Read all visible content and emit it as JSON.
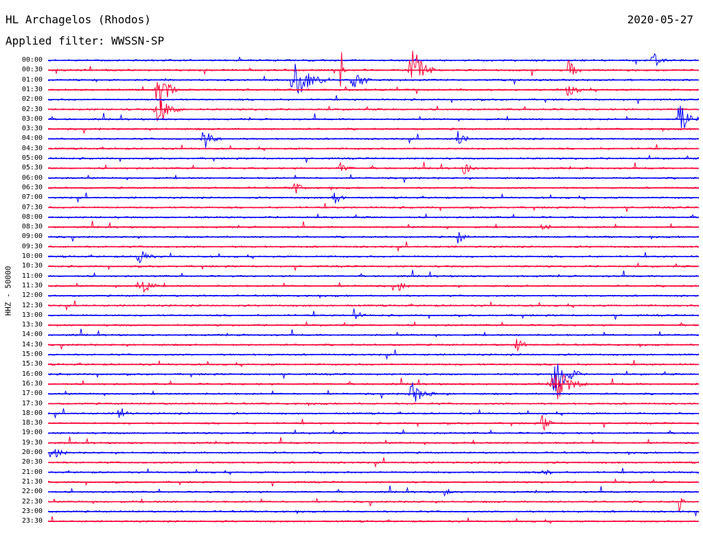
{
  "header": {
    "station": "HL Archagelos (Rhodos)",
    "date": "2020-05-27",
    "filter": "Applied filter: WWSSN-SP"
  },
  "chart_data": {
    "type": "line",
    "title": "HL Archagelos (Rhodos)",
    "subtitle": "Applied filter: WWSSN-SP",
    "ylabel": "HHZ - 50000",
    "colors": [
      "#0000ff",
      "#ff0033"
    ],
    "rows": [
      "00:00",
      "00:30",
      "01:00",
      "01:30",
      "02:00",
      "02:30",
      "03:00",
      "03:30",
      "04:00",
      "04:30",
      "05:00",
      "05:30",
      "06:00",
      "06:30",
      "07:00",
      "07:30",
      "08:00",
      "08:30",
      "09:00",
      "09:30",
      "10:00",
      "10:30",
      "11:00",
      "11:30",
      "12:00",
      "12:30",
      "13:00",
      "13:30",
      "14:00",
      "14:30",
      "15:00",
      "15:30",
      "16:00",
      "16:30",
      "17:00",
      "17:30",
      "18:00",
      "18:30",
      "19:00",
      "19:30",
      "20:00",
      "20:30",
      "21:00",
      "21:30",
      "22:00",
      "22:30",
      "23:00",
      "23:30"
    ],
    "events": [
      {
        "row": 0,
        "t": 0.93,
        "amp": 1.6,
        "dur": 0.02
      },
      {
        "row": 1,
        "t": 0.45,
        "amp": 5,
        "dur": 0.008
      },
      {
        "row": 1,
        "t": 0.56,
        "amp": 4.5,
        "dur": 0.035
      },
      {
        "row": 1,
        "t": 0.8,
        "amp": 2.2,
        "dur": 0.02
      },
      {
        "row": 2,
        "t": 0.38,
        "amp": 3,
        "dur": 0.06
      },
      {
        "row": 2,
        "t": 0.47,
        "amp": 2,
        "dur": 0.03
      },
      {
        "row": 3,
        "t": 0.17,
        "amp": 4.5,
        "dur": 0.03
      },
      {
        "row": 3,
        "t": 0.8,
        "amp": 1.5,
        "dur": 0.025
      },
      {
        "row": 5,
        "t": 0.17,
        "amp": 2.5,
        "dur": 0.04
      },
      {
        "row": 6,
        "t": 0.97,
        "amp": 3.5,
        "dur": 0.03
      },
      {
        "row": 8,
        "t": 0.24,
        "amp": 1.8,
        "dur": 0.03
      },
      {
        "row": 8,
        "t": 0.63,
        "amp": 1.5,
        "dur": 0.02
      },
      {
        "row": 11,
        "t": 0.45,
        "amp": 1.2,
        "dur": 0.02
      },
      {
        "row": 11,
        "t": 0.64,
        "amp": 1.3,
        "dur": 0.02
      },
      {
        "row": 13,
        "t": 0.38,
        "amp": 1.2,
        "dur": 0.02
      },
      {
        "row": 14,
        "t": 0.44,
        "amp": 1.3,
        "dur": 0.02
      },
      {
        "row": 17,
        "t": 0.76,
        "amp": 1.3,
        "dur": 0.015
      },
      {
        "row": 18,
        "t": 0.63,
        "amp": 1.2,
        "dur": 0.02
      },
      {
        "row": 20,
        "t": 0.14,
        "amp": 1.8,
        "dur": 0.025
      },
      {
        "row": 23,
        "t": 0.14,
        "amp": 2.2,
        "dur": 0.03
      },
      {
        "row": 23,
        "t": 0.54,
        "amp": 1.2,
        "dur": 0.015
      },
      {
        "row": 26,
        "t": 0.47,
        "amp": 1.2,
        "dur": 0.02
      },
      {
        "row": 29,
        "t": 0.72,
        "amp": 1.3,
        "dur": 0.02
      },
      {
        "row": 32,
        "t": 0.78,
        "amp": 4.5,
        "dur": 0.04
      },
      {
        "row": 33,
        "t": 0.78,
        "amp": 3,
        "dur": 0.05
      },
      {
        "row": 34,
        "t": 0.56,
        "amp": 1.8,
        "dur": 0.04
      },
      {
        "row": 36,
        "t": 0.11,
        "amp": 1.3,
        "dur": 0.02
      },
      {
        "row": 37,
        "t": 0.76,
        "amp": 1.6,
        "dur": 0.02
      },
      {
        "row": 40,
        "t": 0.01,
        "amp": 1.5,
        "dur": 0.02
      },
      {
        "row": 42,
        "t": 0.76,
        "amp": 1.2,
        "dur": 0.02
      },
      {
        "row": 44,
        "t": 0.61,
        "amp": 1.4,
        "dur": 0.01
      },
      {
        "row": 45,
        "t": 0.97,
        "amp": 2.5,
        "dur": 0.008
      }
    ]
  }
}
